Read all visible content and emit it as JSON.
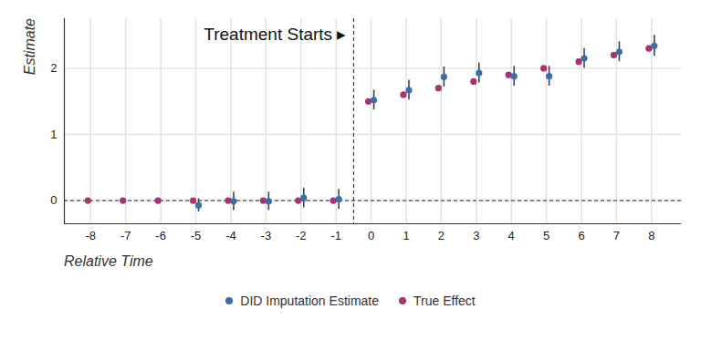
{
  "chart_data": {
    "type": "scatter",
    "annotation": "Treatment Starts ▸",
    "x_label": "Relative Time",
    "y_label": "Estimate",
    "x": [
      -8,
      -7,
      -6,
      -5,
      -4,
      -3,
      -2,
      -1,
      0,
      1,
      2,
      3,
      4,
      5,
      6,
      7,
      8
    ],
    "series": [
      {
        "name": "DID Imputation Estimate",
        "color": "#3a6ea8",
        "marker": "circle",
        "values": [
          null,
          null,
          null,
          -0.07,
          -0.01,
          -0.01,
          0.04,
          0.02,
          1.52,
          1.67,
          1.87,
          1.93,
          1.88,
          1.88,
          2.15,
          2.25,
          2.34
        ],
        "error_low": [
          null,
          null,
          null,
          -0.17,
          -0.15,
          -0.15,
          -0.11,
          -0.13,
          1.37,
          1.52,
          1.72,
          1.78,
          1.73,
          1.73,
          2.0,
          2.1,
          2.18
        ],
        "error_high": [
          null,
          null,
          null,
          0.03,
          0.13,
          0.13,
          0.19,
          0.17,
          1.67,
          1.82,
          2.02,
          2.08,
          2.03,
          2.03,
          2.3,
          2.4,
          2.5
        ]
      },
      {
        "name": "True Effect",
        "color": "#a8336e",
        "marker": "circle",
        "values": [
          0,
          0,
          0,
          0,
          0,
          0,
          0,
          0,
          1.5,
          1.6,
          1.7,
          1.8,
          1.9,
          2.0,
          2.1,
          2.2,
          2.3
        ]
      }
    ],
    "xlim": [
      -8.75,
      8.85
    ],
    "xticks": [
      -8,
      -7,
      -6,
      -5,
      -4,
      -3,
      -2,
      -1,
      0,
      1,
      2,
      3,
      4,
      5,
      6,
      7,
      8
    ],
    "ylim": [
      -0.35,
      2.75
    ],
    "yticks": [
      0,
      1,
      2
    ],
    "grid": true,
    "legend": "bottom",
    "treatment_start": -0.5,
    "reference_line": 0
  }
}
